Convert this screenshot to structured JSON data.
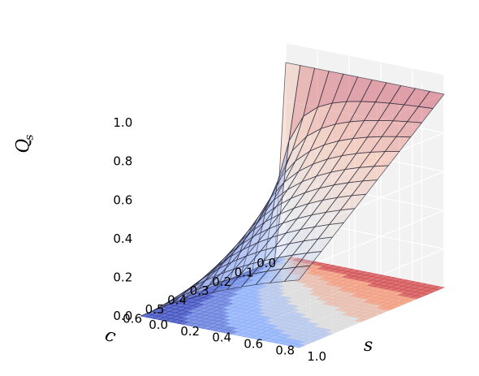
{
  "chart_data": {
    "type": "surface3d",
    "title": "",
    "xlabel": "s",
    "ylabel": "c",
    "zlabel": "Q",
    "zlabel_subscript": "s",
    "x_ticks": [
      "0.0",
      "0.2",
      "0.4",
      "0.6",
      "0.8",
      "1.0"
    ],
    "y_ticks": [
      "0.0",
      "0.1",
      "0.2",
      "0.3",
      "0.4",
      "0.5",
      "0.6"
    ],
    "z_ticks": [
      "0.0",
      "0.2",
      "0.4",
      "0.6",
      "0.8",
      "1.0"
    ],
    "xlim": [
      0,
      1
    ],
    "ylim": [
      0,
      0.65
    ],
    "zlim": [
      0,
      1.1
    ],
    "grid": true,
    "colormap": "coolwarm",
    "surface": {
      "description_formula": "Q = s*(1-c)/(s+c*(1-s))",
      "grid_lines_s": 11,
      "grid_lines_c": 13
    },
    "contour_floor_levels": [
      0.1,
      0.2,
      0.3,
      0.4,
      0.5,
      0.6,
      0.7,
      0.8,
      0.9
    ]
  }
}
